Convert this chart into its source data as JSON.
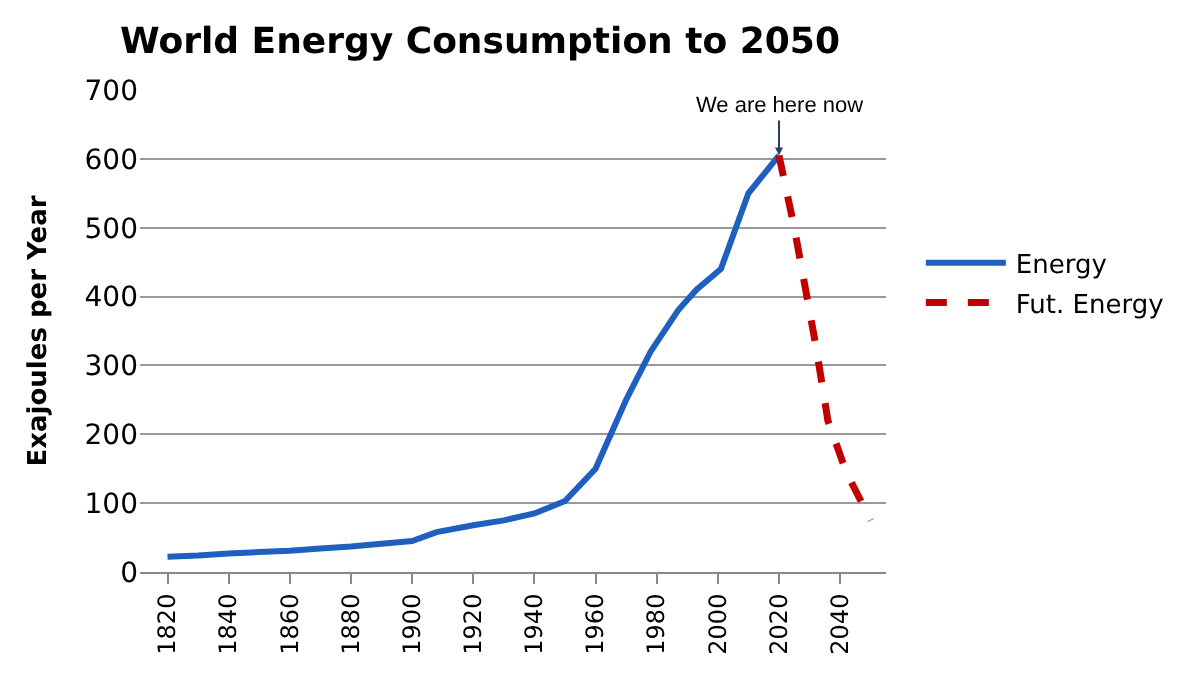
{
  "chart_data": {
    "type": "line",
    "title": "World Energy Consumption to 2050",
    "ylabel": "Exajoules per Year",
    "xlim": [
      1811,
      2055
    ],
    "xticks": [
      1820,
      1840,
      1860,
      1880,
      1900,
      1920,
      1940,
      1960,
      1980,
      2000,
      2020,
      2040
    ],
    "ylim": [
      0,
      700
    ],
    "yticks": [
      0,
      100,
      200,
      300,
      400,
      500,
      600,
      700
    ],
    "grid": "y",
    "legend": "right",
    "series": [
      {
        "name": "Energy",
        "color": "#1f5fbf",
        "line_style": "solid",
        "x": [
          1820,
          1830,
          1840,
          1850,
          1860,
          1870,
          1880,
          1890,
          1900,
          1908,
          1920,
          1930,
          1940,
          1950,
          1960,
          1965,
          1970,
          1978,
          1987,
          1993,
          2001,
          2010,
          2020
        ],
        "values": [
          22,
          24,
          27,
          29,
          31,
          34,
          37,
          41,
          45,
          58,
          68,
          75,
          85,
          103,
          150,
          200,
          250,
          320,
          380,
          410,
          440,
          550,
          605
        ]
      },
      {
        "name": "Fut. Energy",
        "color": "#c00000",
        "line_style": "dashed",
        "x": [
          2020,
          2025,
          2032,
          2036,
          2042,
          2050
        ],
        "values": [
          605,
          500,
          330,
          220,
          145,
          75
        ]
      }
    ],
    "annotations": [
      {
        "text": "We are here now",
        "x": 2020,
        "y": 605
      }
    ]
  }
}
